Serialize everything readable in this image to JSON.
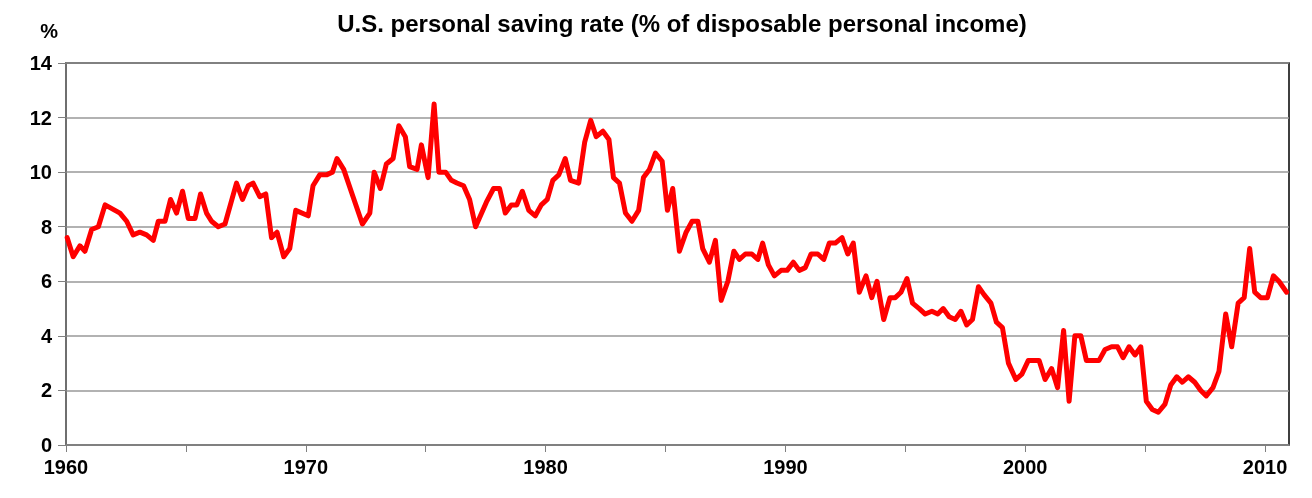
{
  "chart_data": {
    "type": "line",
    "title": "U.S. personal saving rate (% of disposable personal income)",
    "ylabel": "%",
    "xlim": [
      1960,
      2011
    ],
    "xticks": [
      1960,
      {
        "value": 1965,
        "label": null
      },
      1970,
      {
        "value": 1975,
        "label": null
      },
      1980,
      {
        "value": 1985,
        "label": null
      },
      1990,
      {
        "value": 1995,
        "label": null
      },
      2000,
      {
        "value": 2005,
        "label": null
      },
      2010
    ],
    "ylim": [
      0,
      14
    ],
    "yticks": [
      0,
      2,
      4,
      6,
      8,
      10,
      12,
      14
    ],
    "grid": "y",
    "marker": "none",
    "line_style": "solid",
    "series": [
      {
        "color": "#ff0000",
        "x": [
          1960.05,
          1960.3,
          1960.58,
          1960.79,
          1961.07,
          1961.35,
          1961.63,
          1962.25,
          1962.53,
          1962.8,
          1963.08,
          1963.36,
          1963.64,
          1963.85,
          1964.13,
          1964.36,
          1964.61,
          1964.86,
          1965.1,
          1965.38,
          1965.61,
          1965.86,
          1966.07,
          1966.35,
          1966.63,
          1967.11,
          1967.36,
          1967.6,
          1967.8,
          1968.08,
          1968.33,
          1968.57,
          1968.8,
          1969.08,
          1969.33,
          1969.58,
          1970.1,
          1970.3,
          1970.58,
          1970.86,
          1971.11,
          1971.3,
          1971.58,
          1971.97,
          1972.36,
          1972.67,
          1972.85,
          1973.11,
          1973.36,
          1973.64,
          1973.88,
          1974.15,
          1974.33,
          1974.64,
          1974.82,
          1975.1,
          1975.35,
          1975.55,
          1975.83,
          1976.07,
          1976.3,
          1976.58,
          1976.83,
          1977.08,
          1977.53,
          1977.83,
          1978.08,
          1978.32,
          1978.57,
          1978.8,
          1979.03,
          1979.3,
          1979.57,
          1979.82,
          1980.07,
          1980.3,
          1980.55,
          1980.82,
          1981.04,
          1981.38,
          1981.63,
          1981.88,
          1982.11,
          1982.39,
          1982.64,
          1982.83,
          1983.08,
          1983.33,
          1983.6,
          1983.88,
          1984.08,
          1984.33,
          1984.58,
          1984.86,
          1985.08,
          1985.3,
          1985.58,
          1985.86,
          1986.11,
          1986.35,
          1986.55,
          1986.83,
          1987.08,
          1987.32,
          1987.6,
          1987.85,
          1988.08,
          1988.33,
          1988.6,
          1988.85,
          1989.05,
          1989.29,
          1989.54,
          1989.82,
          1990.07,
          1990.33,
          1990.58,
          1990.83,
          1991.07,
          1991.35,
          1991.6,
          1991.83,
          1992.08,
          1992.36,
          1992.6,
          1992.83,
          1993.08,
          1993.36,
          1993.6,
          1993.82,
          1994.1,
          1994.36,
          1994.58,
          1994.82,
          1995.07,
          1995.3,
          1995.58,
          1995.83,
          1996.11,
          1996.35,
          1996.58,
          1996.83,
          1997.08,
          1997.32,
          1997.56,
          1997.8,
          1998.05,
          1998.29,
          1998.57,
          1998.8,
          1999.05,
          1999.3,
          1999.61,
          1999.86,
          2000.13,
          2000.58,
          2000.83,
          2001.1,
          2001.35,
          2001.6,
          2001.83,
          2002.07,
          2002.32,
          2002.55,
          2003.08,
          2003.33,
          2003.6,
          2003.85,
          2004.08,
          2004.33,
          2004.58,
          2004.82,
          2005.05,
          2005.3,
          2005.55,
          2005.83,
          2006.07,
          2006.32,
          2006.55,
          2006.8,
          2007.07,
          2007.32,
          2007.55,
          2007.83,
          2008.08,
          2008.36,
          2008.61,
          2008.88,
          2009.13,
          2009.36,
          2009.57,
          2009.82,
          2010.1,
          2010.35,
          2010.58,
          2010.9
        ],
        "values": [
          7.6,
          6.9,
          7.3,
          7.1,
          7.9,
          8.0,
          8.8,
          8.5,
          8.2,
          7.7,
          7.8,
          7.7,
          7.5,
          8.2,
          8.2,
          9.0,
          8.5,
          9.3,
          8.3,
          8.3,
          9.2,
          8.5,
          8.2,
          8.0,
          8.1,
          9.6,
          9.0,
          9.5,
          9.6,
          9.1,
          9.2,
          7.6,
          7.8,
          6.9,
          7.2,
          8.6,
          8.4,
          9.5,
          9.9,
          9.9,
          10.0,
          10.5,
          10.1,
          9.1,
          8.1,
          8.5,
          10.0,
          9.4,
          10.3,
          10.5,
          11.7,
          11.3,
          10.2,
          10.1,
          11.0,
          9.8,
          12.5,
          10.0,
          10.0,
          9.7,
          9.6,
          9.5,
          9.0,
          8.0,
          8.9,
          9.4,
          9.4,
          8.5,
          8.8,
          8.8,
          9.3,
          8.6,
          8.4,
          8.8,
          9.0,
          9.7,
          9.9,
          10.5,
          9.7,
          9.6,
          11.1,
          11.9,
          11.3,
          11.5,
          11.2,
          9.8,
          9.6,
          8.5,
          8.2,
          8.6,
          9.8,
          10.1,
          10.7,
          10.4,
          8.6,
          9.4,
          7.1,
          7.8,
          8.2,
          8.2,
          7.2,
          6.7,
          7.5,
          5.3,
          6.0,
          7.1,
          6.8,
          7.0,
          7.0,
          6.8,
          7.4,
          6.6,
          6.2,
          6.4,
          6.4,
          6.7,
          6.4,
          6.5,
          7.0,
          7.0,
          6.8,
          7.4,
          7.4,
          7.6,
          7.0,
          7.4,
          5.6,
          6.2,
          5.4,
          6.0,
          4.6,
          5.4,
          5.4,
          5.6,
          6.1,
          5.2,
          5.0,
          4.8,
          4.9,
          4.8,
          5.0,
          4.7,
          4.6,
          4.9,
          4.4,
          4.6,
          5.8,
          5.5,
          5.2,
          4.5,
          4.3,
          3.0,
          2.4,
          2.6,
          3.1,
          3.1,
          2.4,
          2.8,
          2.1,
          4.2,
          1.6,
          4.0,
          4.0,
          3.1,
          3.1,
          3.5,
          3.6,
          3.6,
          3.2,
          3.6,
          3.3,
          3.6,
          1.6,
          1.3,
          1.2,
          1.5,
          2.2,
          2.5,
          2.3,
          2.5,
          2.3,
          2.0,
          1.8,
          2.1,
          2.7,
          4.8,
          3.6,
          5.2,
          5.4,
          7.2,
          5.6,
          5.4,
          5.4,
          6.2,
          6.0,
          5.6
        ]
      }
    ]
  }
}
